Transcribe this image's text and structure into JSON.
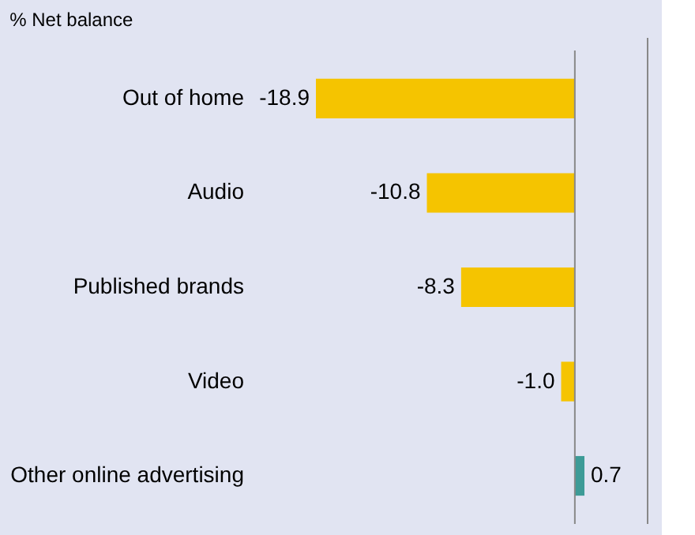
{
  "chart_data": {
    "type": "bar",
    "orientation": "horizontal",
    "title": "% Net balance",
    "categories": [
      "Out of home",
      "Audio",
      "Published brands",
      "Video",
      "Other online advertising"
    ],
    "values": [
      -18.9,
      -10.8,
      -8.3,
      -1.0,
      0.7
    ],
    "colors": [
      "#f5c400",
      "#f5c400",
      "#f5c400",
      "#f5c400",
      "#3d9b97"
    ],
    "value_labels": [
      "-18.9",
      "-10.8",
      "-8.3",
      "-1.0",
      "0.7"
    ]
  }
}
